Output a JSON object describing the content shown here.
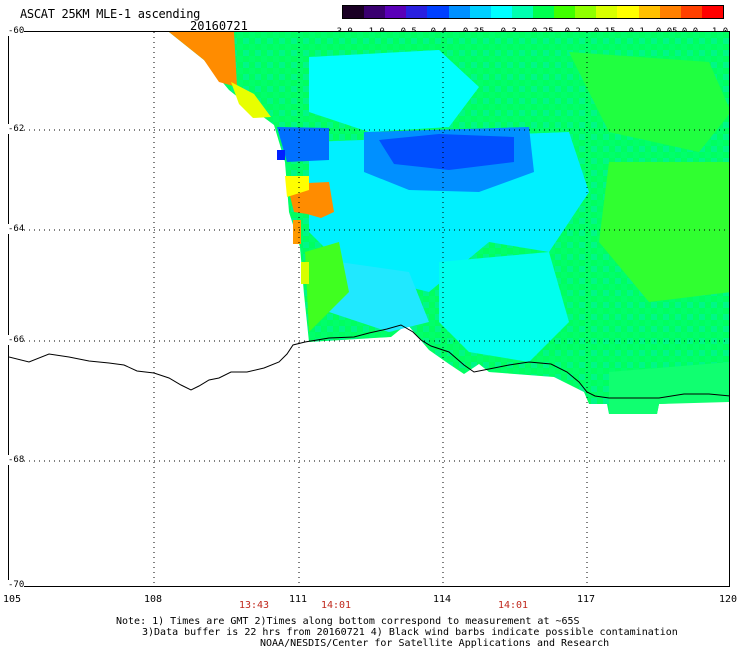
{
  "header": {
    "title": "ASCAT 25KM MLE-1 ascending",
    "date": "20160721"
  },
  "colorbar": {
    "labels": [
      "-3.0",
      "-1.0",
      "-0.5",
      "-0.4",
      "-0.35",
      "-0.3",
      "-0.25",
      "-0.2",
      "-0.15",
      "-0.1",
      "-0.05",
      "0.0",
      "1.0"
    ],
    "colors": [
      "#1a0024",
      "#3a0070",
      "#5a00b8",
      "#2a20e0",
      "#0040ff",
      "#0090ff",
      "#00d0ff",
      "#00ffff",
      "#00ffb0",
      "#00ff50",
      "#40ff00",
      "#90ff00",
      "#d8ff00",
      "#ffff00",
      "#ffc000",
      "#ff8000",
      "#ff4000",
      "#ff0000"
    ]
  },
  "map": {
    "lat_labels": [
      "-60",
      "-62",
      "-64",
      "-66",
      "-68",
      "-70"
    ],
    "lon_labels": [
      "105",
      "108",
      "111",
      "114",
      "117",
      "120"
    ],
    "time_labels": [
      "13:43",
      "14:01",
      "14:01"
    ]
  },
  "notes": {
    "line1": "Note: 1) Times are GMT 2)Times along bottom correspond to measurement at ~65S",
    "line2": "3)Data buffer is 22 hrs from 20160721 4) Black wind barbs indicate possible contamination",
    "line3": "NOAA/NESDIS/Center for Satellite Applications and Research"
  }
}
